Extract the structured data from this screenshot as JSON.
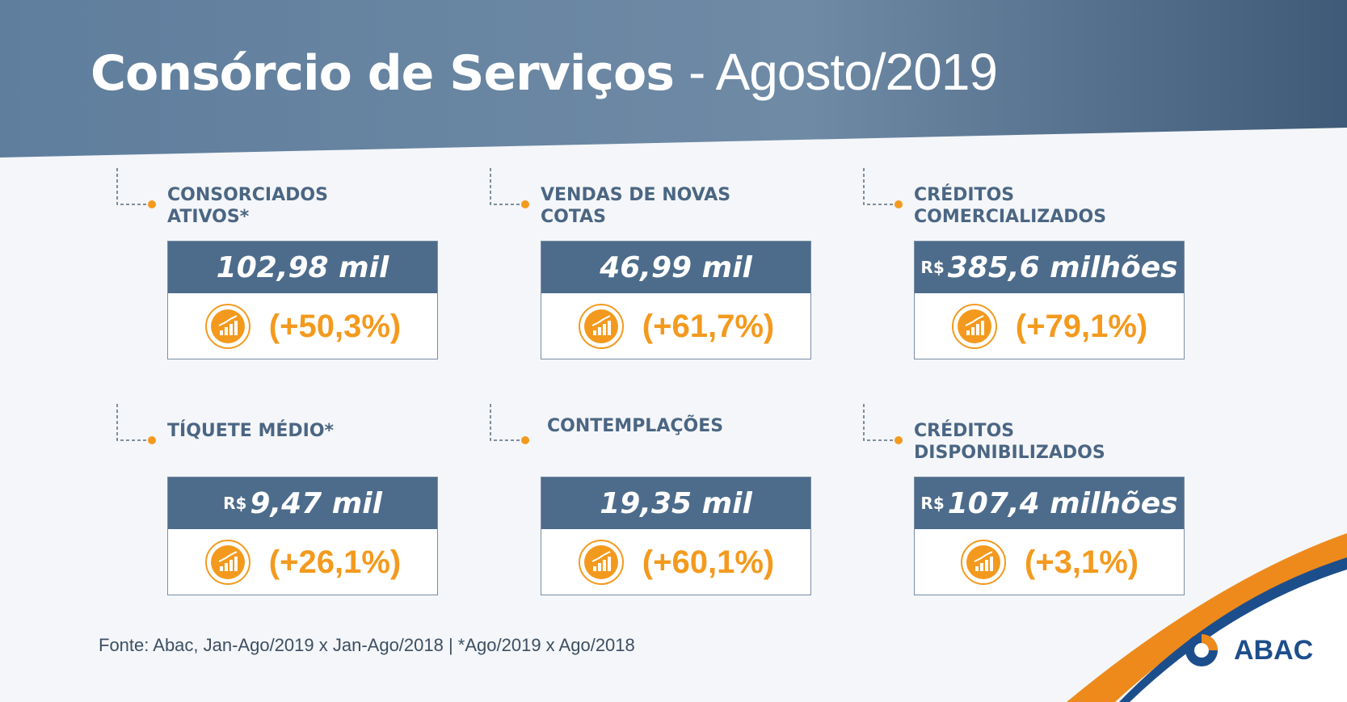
{
  "header": {
    "title_main": "Consórcio de Serviços",
    "title_period": "- Agosto/2019"
  },
  "cards": [
    {
      "label": "CONSORCIADOS ATIVOS*",
      "prefix": null,
      "value": "102,98 mil",
      "change": "(+50,3%)"
    },
    {
      "label": "VENDAS DE NOVAS COTAS",
      "prefix": null,
      "value": "46,99 mil",
      "change": "(+61,7%)"
    },
    {
      "label": "CRÉDITOS COMERCIALIZADOS",
      "prefix": "R$",
      "value": "385,6 milhões",
      "change": "(+79,1%)"
    },
    {
      "label": "TÍQUETE MÉDIO*",
      "prefix": "R$",
      "value": "9,47 mil",
      "change": "(+26,1%)"
    },
    {
      "label": "CONTEMPLAÇÕES",
      "prefix": null,
      "value": "19,35 mil",
      "change": "(+60,1%)"
    },
    {
      "label": "CRÉDITOS DISPONIBILIZADOS",
      "prefix": "R$",
      "value": "107,4 milhões",
      "change": "(+3,1%)"
    }
  ],
  "footer": {
    "source": "Fonte: Abac, Jan-Ago/2019  x Jan-Ago/2018 | *Ago/2019 x Ago/2018"
  },
  "logo": {
    "text": "ABAC"
  }
}
